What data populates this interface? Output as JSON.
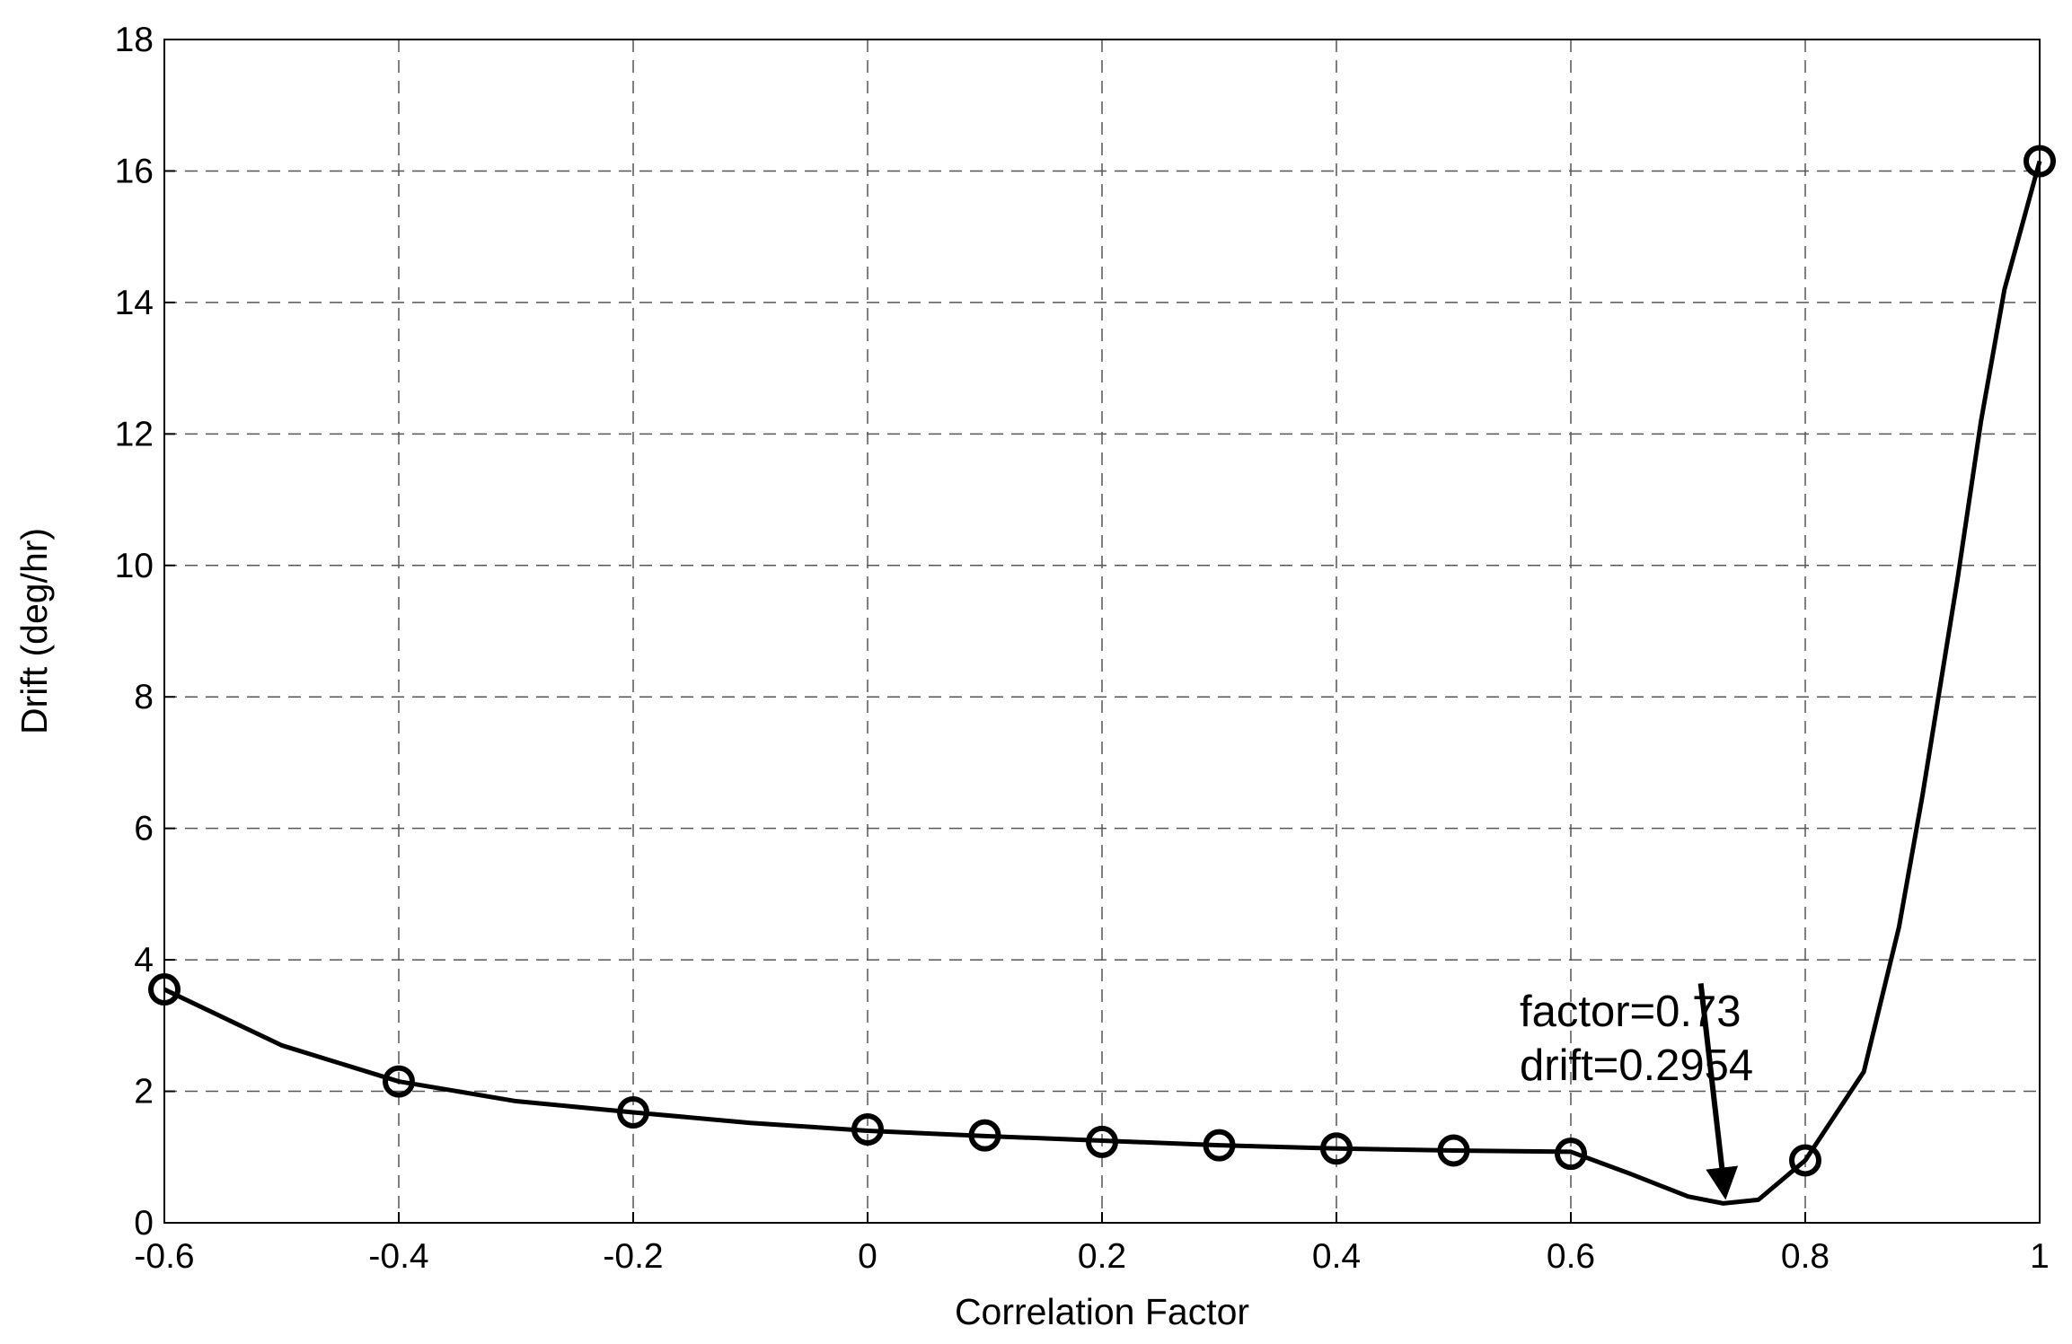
{
  "chart_data": {
    "type": "line",
    "xlabel": "Correlation Factor",
    "ylabel": "Drift (deg/hr)",
    "xlim": [
      -0.6,
      1
    ],
    "ylim": [
      0,
      18
    ],
    "xticks": [
      -0.6,
      -0.4,
      -0.2,
      0,
      0.2,
      0.4,
      0.6,
      0.8,
      1
    ],
    "yticks": [
      0,
      2,
      4,
      6,
      8,
      10,
      12,
      14,
      16,
      18
    ],
    "grid": true,
    "annotation": [
      "factor=0.73",
      "drift=0.2954"
    ],
    "series": [
      {
        "color": "#000000",
        "marker": "none",
        "x": [
          -0.6,
          -0.5,
          -0.4,
          -0.3,
          -0.2,
          -0.1,
          0,
          0.1,
          0.2,
          0.3,
          0.4,
          0.5,
          0.6,
          0.65,
          0.7,
          0.73,
          0.76,
          0.8,
          0.85,
          0.88,
          0.9,
          0.93,
          0.95,
          0.97,
          1
        ],
        "values": [
          3.55,
          2.7,
          2.15,
          1.85,
          1.68,
          1.52,
          1.4,
          1.32,
          1.25,
          1.18,
          1.13,
          1.1,
          1.08,
          0.75,
          0.4,
          0.2954,
          0.35,
          0.95,
          2.3,
          4.5,
          6.5,
          9.8,
          12.2,
          14.2,
          16.15
        ]
      },
      {
        "color": "#000000",
        "marker": "circle",
        "x": [
          -0.6,
          -0.4,
          -0.2,
          0,
          0.1,
          0.2,
          0.3,
          0.4,
          0.5,
          0.6,
          0.8,
          1
        ],
        "values": [
          3.55,
          2.15,
          1.68,
          1.42,
          1.33,
          1.23,
          1.18,
          1.13,
          1.1,
          1.05,
          0.95,
          16.15
        ]
      }
    ]
  }
}
